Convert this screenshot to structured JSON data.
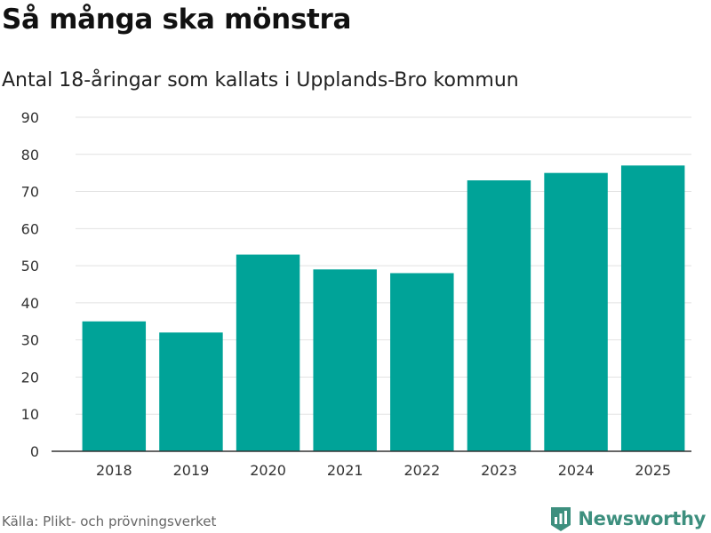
{
  "header": {
    "title": "Så många ska mönstra",
    "subtitle": "Antal 18-åringar som kallats i Upplands-Bro kommun"
  },
  "footer": {
    "source": "Källa: Plikt- och prövningsverket",
    "brand": "Newsworthy",
    "brand_icon": "newsworthy-logo-icon"
  },
  "colors": {
    "bar": "#00a398",
    "grid": "#e2e2e2",
    "axis": "#333333",
    "brand": "#3d8f7e"
  },
  "chart_data": {
    "type": "bar",
    "title": "Så många ska mönstra",
    "subtitle": "Antal 18-åringar som kallats i Upplands-Bro kommun",
    "xlabel": "",
    "ylabel": "",
    "categories": [
      "2018",
      "2019",
      "2020",
      "2021",
      "2022",
      "2023",
      "2024",
      "2025"
    ],
    "values": [
      35,
      32,
      53,
      49,
      48,
      73,
      75,
      77
    ],
    "ylim": [
      0,
      90
    ],
    "yticks": [
      0,
      10,
      20,
      30,
      40,
      50,
      60,
      70,
      80,
      90
    ],
    "grid": true,
    "legend": "none"
  }
}
